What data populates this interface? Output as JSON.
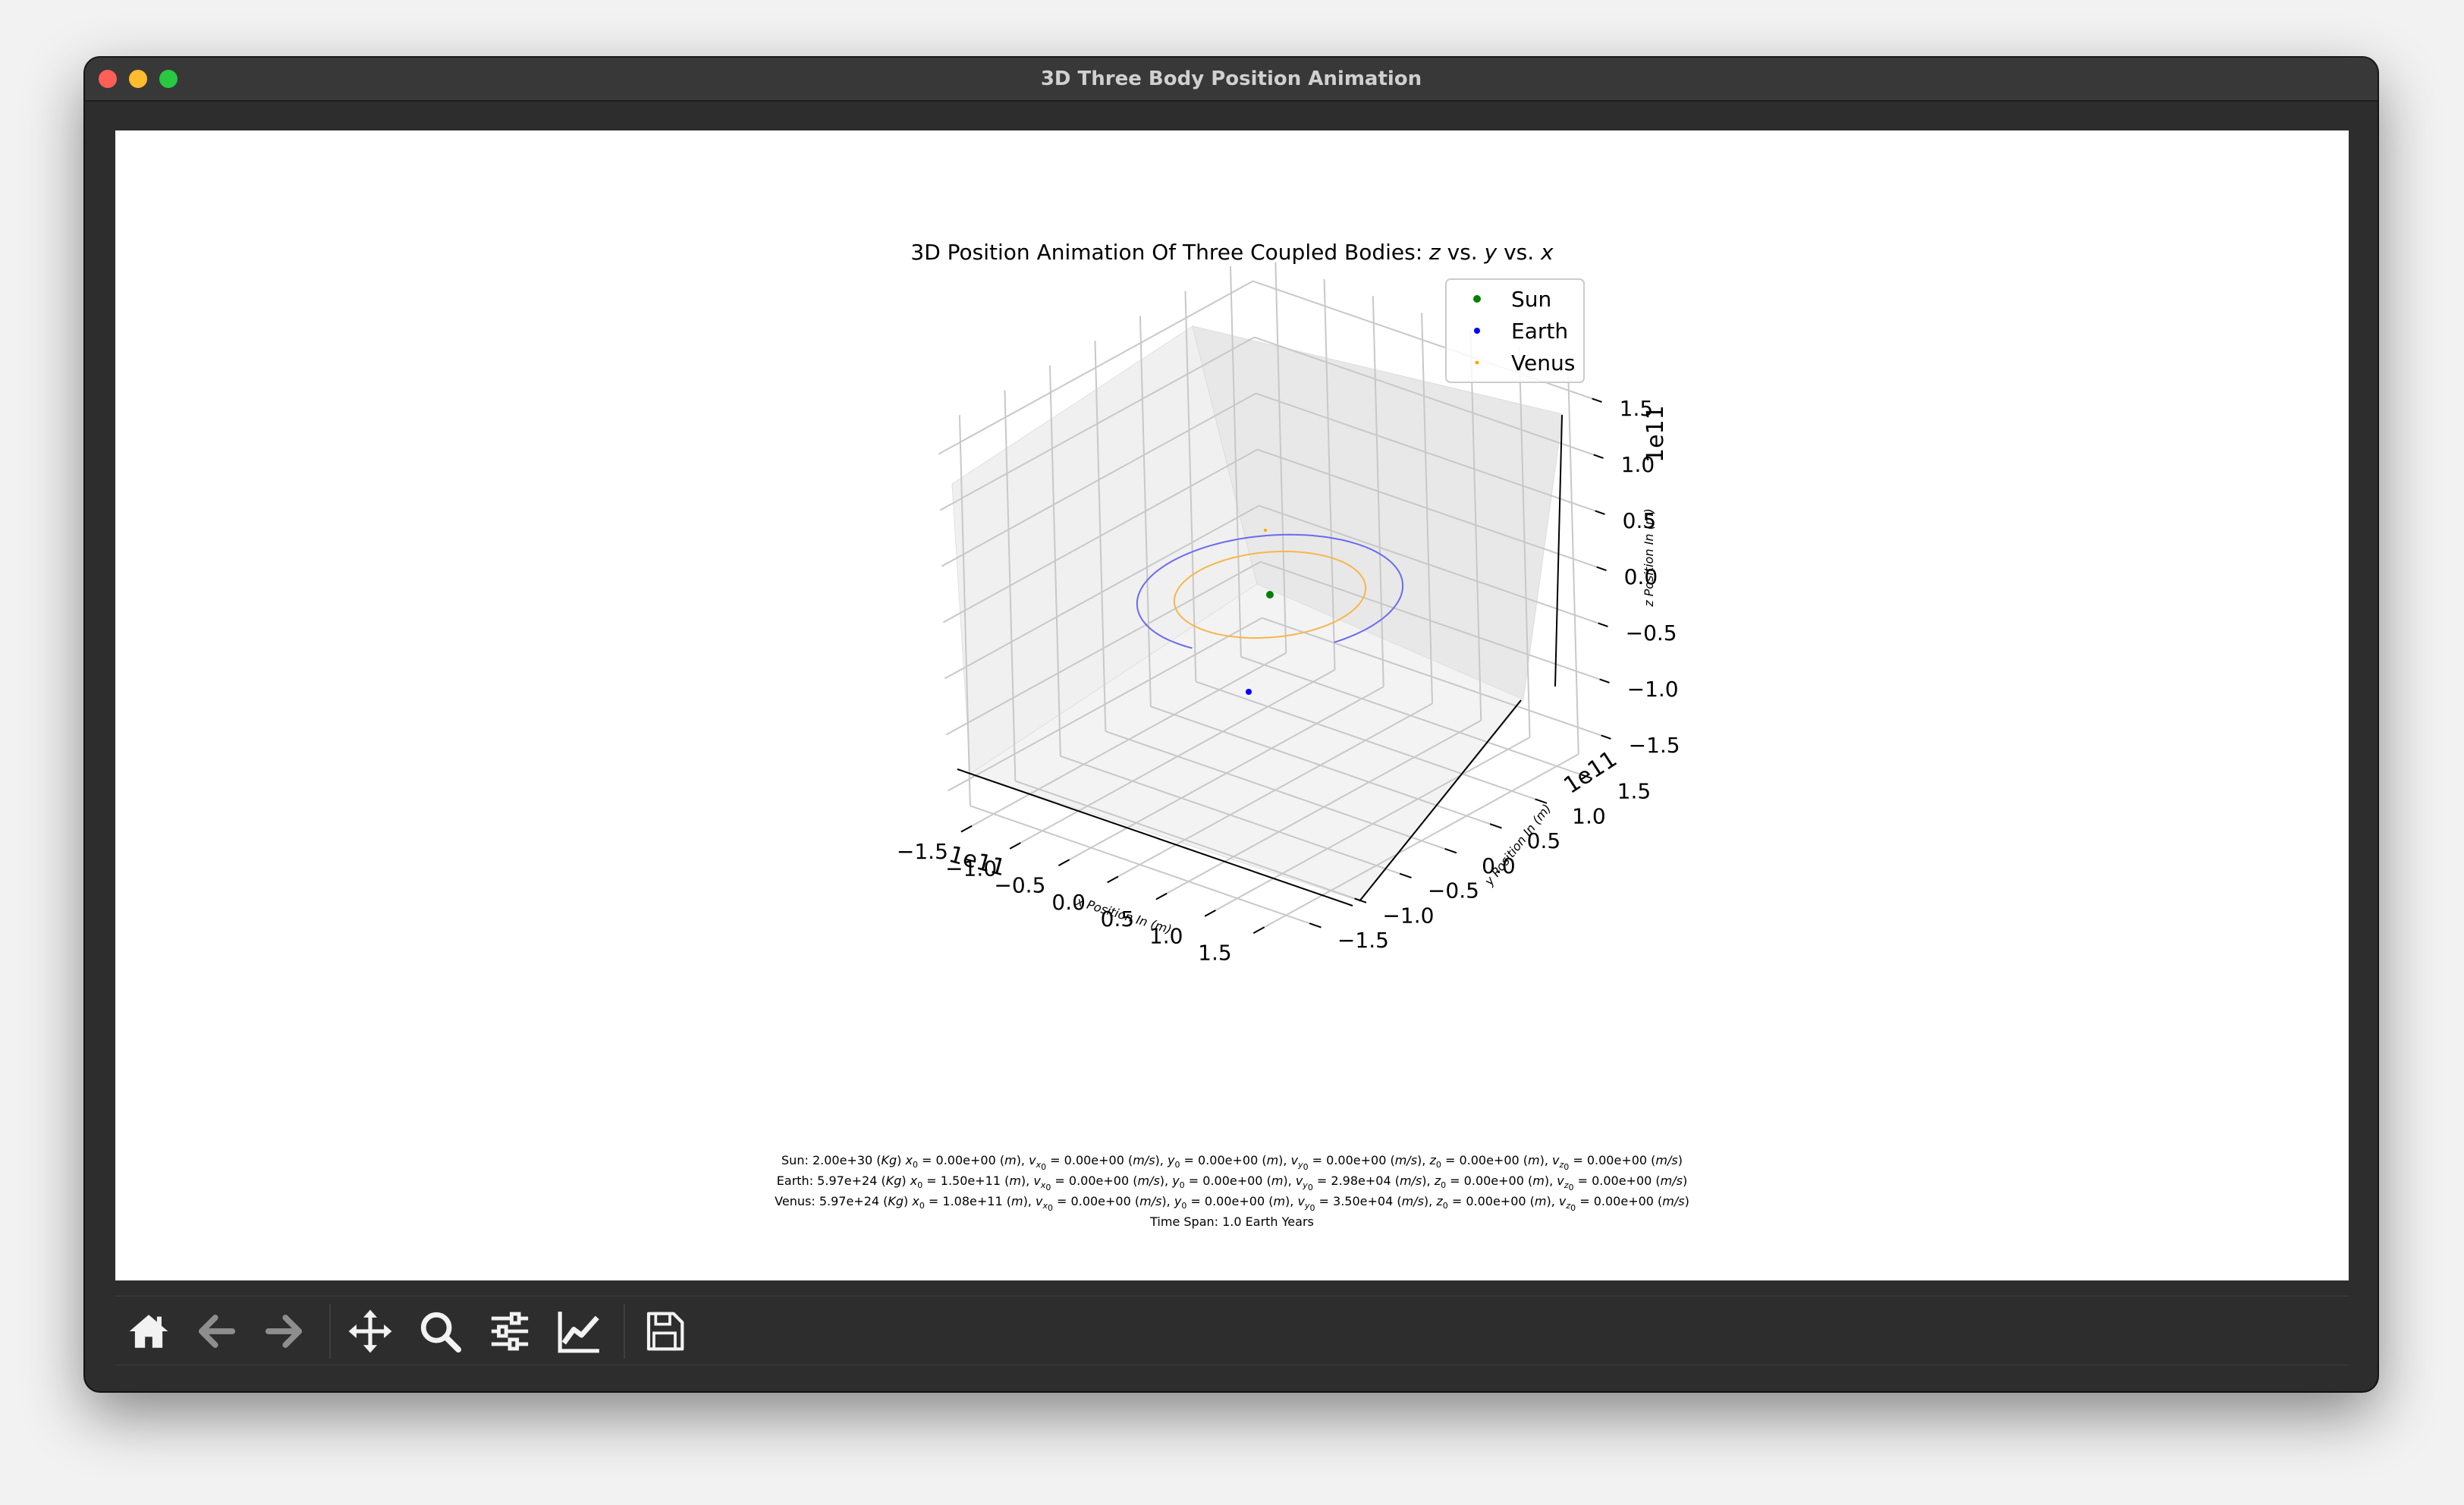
{
  "window": {
    "title": "3D Three Body Position Animation"
  },
  "chart_data": {
    "type": "scatter",
    "title": "3D Position Animation Of Three Coupled Bodies: z vs. y vs. x",
    "xlabel": "x Position In (m)",
    "ylabel": "y Position In (m)",
    "zlabel": "z Position In (m)",
    "offset_text": "1e11",
    "xlim": [
      -150000000000.0,
      150000000000.0
    ],
    "ylim": [
      -150000000000.0,
      150000000000.0
    ],
    "zlim": [
      -150000000000.0,
      150000000000.0
    ],
    "ticks": [
      "−1.5",
      "−1.0",
      "−0.5",
      "0.0",
      "0.5",
      "1.0",
      "1.5"
    ],
    "legend_position": "upper right",
    "grid": true,
    "series": [
      {
        "name": "Sun",
        "color": "#008000",
        "marker": "dot",
        "point": {
          "x": 0.0,
          "y": 0.0,
          "z": 0.0
        }
      },
      {
        "name": "Earth",
        "color": "#0000ff",
        "marker": "dot",
        "orbit_radius": 150000000000.0,
        "trail": "partial orbit"
      },
      {
        "name": "Venus",
        "color": "#ffa500",
        "marker": "dot",
        "orbit_radius": 108000000000.0,
        "trail": "full orbit"
      }
    ]
  },
  "info": {
    "sun": {
      "name": "Sun",
      "mass": "2.00e+30",
      "x0": "0.00e+00",
      "vx0": "0.00e+00",
      "y0": "0.00e+00",
      "vy0": "0.00e+00",
      "z0": "0.00e+00",
      "vz0": "0.00e+00"
    },
    "earth": {
      "name": "Earth",
      "mass": "5.97e+24",
      "x0": "1.50e+11",
      "vx0": "0.00e+00",
      "y0": "0.00e+00",
      "vy0": "2.98e+04",
      "z0": "0.00e+00",
      "vz0": "0.00e+00"
    },
    "venus": {
      "name": "Venus",
      "mass": "5.97e+24",
      "x0": "1.08e+11",
      "vx0": "0.00e+00",
      "y0": "0.00e+00",
      "vy0": "3.50e+04",
      "z0": "0.00e+00",
      "vz0": "0.00e+00"
    },
    "time_span": "Time Span: 1.0 Earth Years"
  },
  "toolbar": {
    "buttons": [
      "home-icon",
      "back-arrow-icon",
      "forward-arrow-icon",
      "pan-move-icon",
      "zoom-magnifier-icon",
      "configure-subplots-icon",
      "edit-axis-icon",
      "save-floppy-icon"
    ]
  }
}
